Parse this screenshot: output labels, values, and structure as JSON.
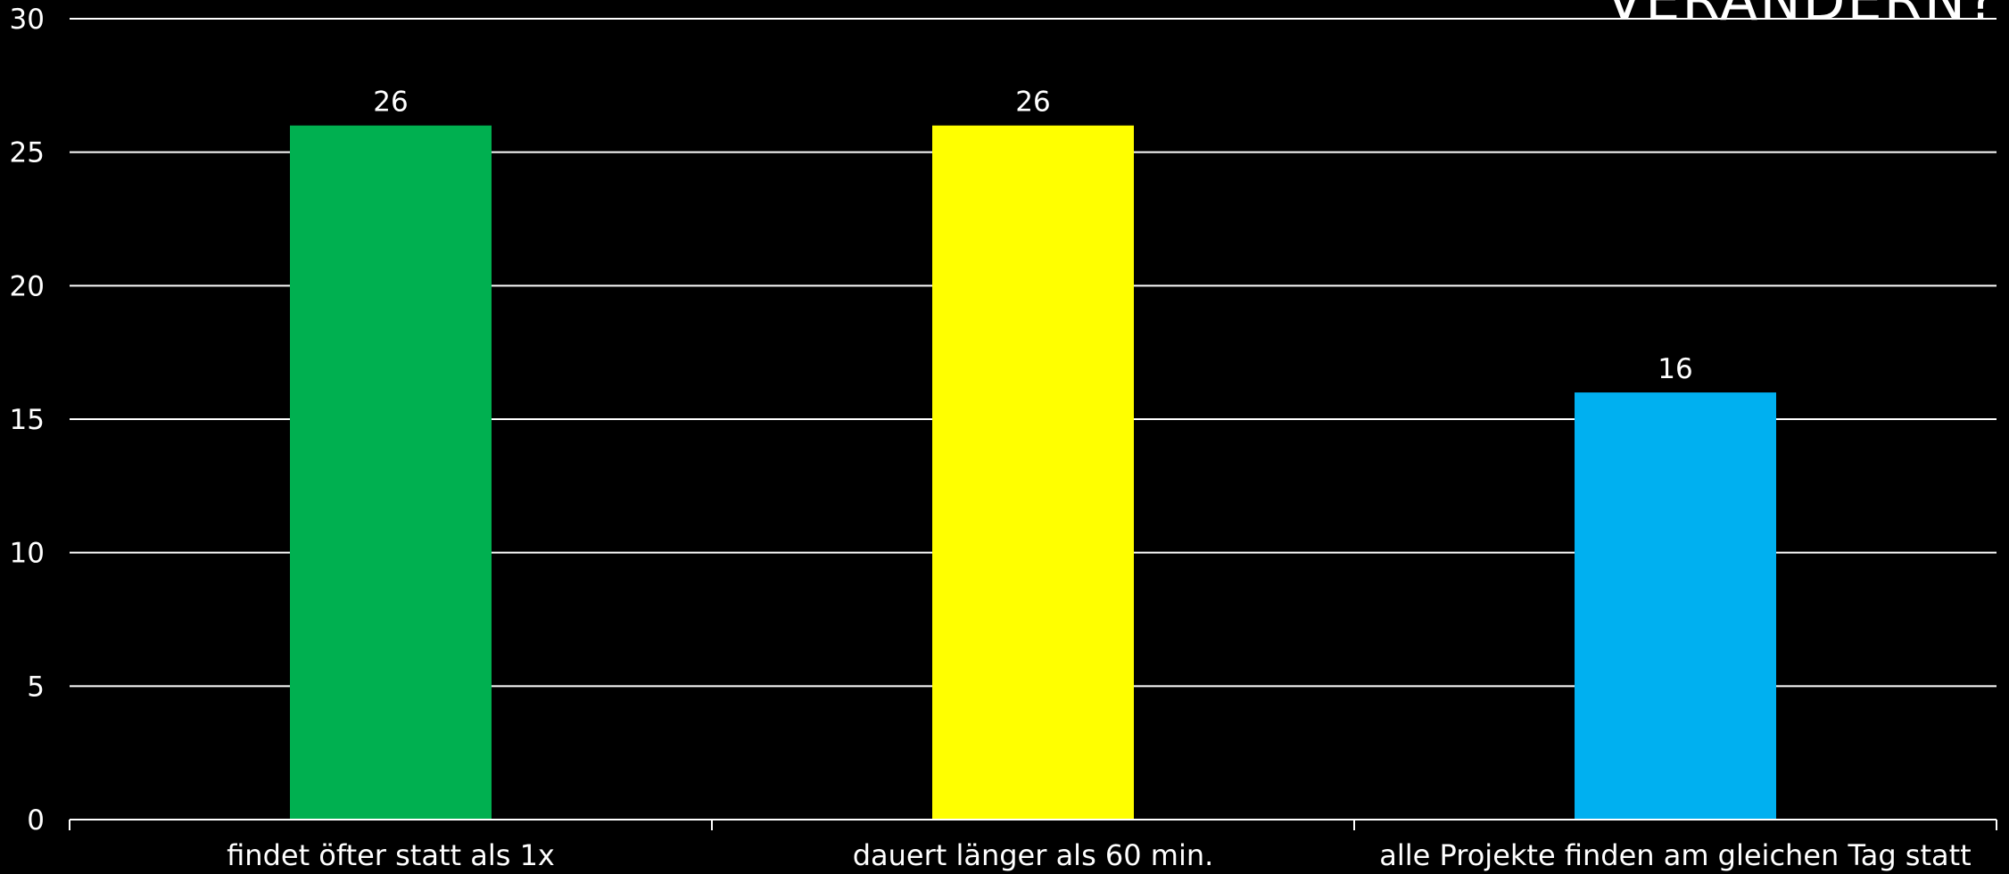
{
  "chart_data": {
    "type": "bar",
    "title": "VERÄNDERN?",
    "categories": [
      "findet öfter statt als 1x",
      "dauert länger als 60 min.",
      "alle Projekte finden am gleichen Tag statt"
    ],
    "values": [
      26,
      26,
      16
    ],
    "colors": [
      "#00b050",
      "#ffff00",
      "#00b0f0"
    ],
    "ylim": [
      0,
      30
    ],
    "yticks": [
      0,
      5,
      10,
      15,
      20,
      25,
      30
    ],
    "grid": true,
    "legend": "none",
    "data_labels": true,
    "background": "#000000",
    "text_color": "#ffffff"
  }
}
